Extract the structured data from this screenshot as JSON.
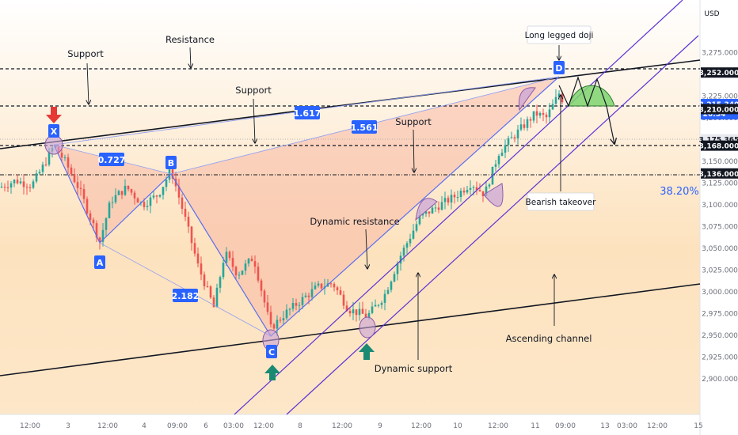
{
  "chart_data": {
    "type": "candlestick",
    "currency": "USD",
    "y_axis_range": [
      2888,
      3302
    ],
    "y_ticks": [
      2900,
      2925,
      2950,
      2975,
      3000,
      3025,
      3050,
      3075,
      3100,
      3125,
      3150,
      3175,
      3200,
      3225,
      3250,
      3275
    ],
    "x_ticks": [
      "12:00",
      "3",
      "12:00",
      "4",
      "09:00",
      "6",
      "03:00",
      "12:00",
      "8",
      "12:00",
      "9",
      "12:00",
      "10",
      "12:00",
      "11",
      "09:00",
      "13",
      "03:00",
      "12:00",
      "15"
    ],
    "price_tags": [
      {
        "value": 3252.0,
        "label": "3,252.000",
        "style": "dark"
      },
      {
        "value": 3215.34,
        "label": "3,215.340",
        "countdown": "26:54",
        "style": "blue"
      },
      {
        "value": 3210.0,
        "label": "3,210.000",
        "style": "dark"
      },
      {
        "value": 3175.365,
        "label": "3,175.365",
        "style": "light"
      },
      {
        "value": 3168.0,
        "label": "3,168.000",
        "style": "dark"
      },
      {
        "value": 3136.0,
        "label": "3,136.000",
        "style": "dark"
      }
    ],
    "horizontal_levels": [
      3252,
      3210,
      3168,
      3136
    ],
    "fib_label": "38.20%",
    "pattern_points": [
      {
        "label": "X",
        "price": 3168
      },
      {
        "label": "A",
        "price": 3058
      },
      {
        "label": "B",
        "price": 3140
      },
      {
        "label": "C",
        "price": 2958
      },
      {
        "label": "D",
        "price": 3228
      }
    ],
    "ratios": [
      "0.727",
      "2.182",
      "1.617",
      "1.561"
    ],
    "annotations": {
      "support_1": "Support",
      "resistance": "Resistance",
      "support_2": "Support",
      "support_3": "Support",
      "long_legged_doji": "Long legged doji",
      "bearish_takeover": "Bearish takeover",
      "dynamic_resistance": "Dynamic resistance",
      "dynamic_support": "Dynamic support",
      "ascending_channel": "Ascending channel"
    },
    "colors": {
      "bull": "#26a69a",
      "bear": "#ef5350",
      "label_blue": "#2962ff",
      "pattern_line": "#5b6ff0",
      "channel_line": "#5c33d6",
      "arrow_down": "#e53935",
      "arrow_up": "#1a8a73",
      "fib_text": "#2962ff"
    }
  }
}
